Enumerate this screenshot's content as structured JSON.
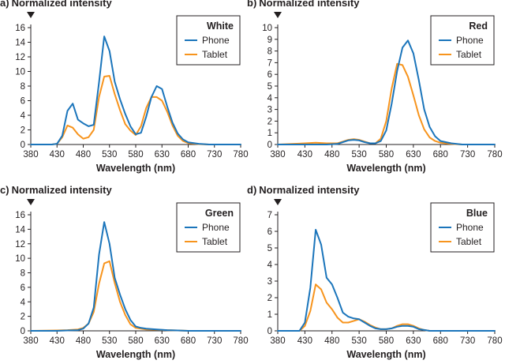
{
  "colors": {
    "phone": "#1b75bb",
    "tablet": "#f7941d",
    "axis": "#231f20"
  },
  "chart_data": [
    {
      "type": "line",
      "panel_label": "a)",
      "title": "Normalized intensity",
      "legend_title": "White",
      "xlabel": "Wavelength (nm)",
      "xlim": [
        380,
        780
      ],
      "xticks": [
        380,
        430,
        480,
        530,
        580,
        630,
        680,
        730,
        780
      ],
      "ylim": [
        0,
        16
      ],
      "yticks": [
        0,
        2,
        4,
        6,
        8,
        10,
        12,
        14,
        16
      ],
      "x": [
        380,
        400,
        420,
        430,
        440,
        450,
        460,
        470,
        480,
        490,
        500,
        510,
        520,
        530,
        540,
        550,
        560,
        570,
        580,
        590,
        600,
        610,
        620,
        630,
        640,
        650,
        660,
        670,
        680,
        700,
        720,
        740,
        760,
        780
      ],
      "series": [
        {
          "name": "Phone",
          "values": [
            0,
            0,
            0,
            0.1,
            1.2,
            4.6,
            5.6,
            3.4,
            2.9,
            2.5,
            2.7,
            8.5,
            14.8,
            12.8,
            8.6,
            6.2,
            4.2,
            2.5,
            1.4,
            1.6,
            3.8,
            6.5,
            8.0,
            7.6,
            5.2,
            3.0,
            1.5,
            0.7,
            0.3,
            0.1,
            0,
            0,
            0,
            0
          ]
        },
        {
          "name": "Tablet",
          "values": [
            0,
            0,
            0,
            0.1,
            1.0,
            2.6,
            2.3,
            1.4,
            0.8,
            1.0,
            2.0,
            6.5,
            9.3,
            9.4,
            6.9,
            4.7,
            2.8,
            1.9,
            1.3,
            2.5,
            5.0,
            6.5,
            6.5,
            6.0,
            4.5,
            2.6,
            1.2,
            0.5,
            0.2,
            0.05,
            0,
            0,
            0,
            0
          ]
        }
      ]
    },
    {
      "type": "line",
      "panel_label": "b)",
      "title": "Normalized intensity",
      "legend_title": "Red",
      "xlabel": "Wavelength (nm)",
      "xlim": [
        380,
        780
      ],
      "xticks": [
        380,
        430,
        480,
        530,
        580,
        630,
        680,
        730,
        780
      ],
      "ylim": [
        0,
        10
      ],
      "yticks": [
        0,
        1,
        2,
        3,
        4,
        5,
        6,
        7,
        8,
        9,
        10
      ],
      "x": [
        380,
        430,
        450,
        470,
        490,
        500,
        510,
        520,
        530,
        540,
        550,
        560,
        570,
        580,
        590,
        600,
        610,
        620,
        630,
        640,
        650,
        660,
        670,
        680,
        700,
        720,
        740,
        760,
        780
      ],
      "series": [
        {
          "name": "Phone",
          "values": [
            0,
            0,
            0,
            0,
            0.05,
            0.2,
            0.35,
            0.4,
            0.35,
            0.2,
            0.1,
            0.1,
            0.3,
            1.2,
            3.5,
            6.3,
            8.3,
            8.9,
            7.8,
            5.5,
            3.0,
            1.5,
            0.7,
            0.3,
            0.1,
            0,
            0,
            0,
            0
          ]
        },
        {
          "name": "Tablet",
          "values": [
            0,
            0.1,
            0.15,
            0.1,
            0.1,
            0.25,
            0.4,
            0.45,
            0.4,
            0.25,
            0.1,
            0.1,
            0.5,
            2.0,
            4.8,
            6.9,
            6.8,
            5.8,
            4.2,
            2.5,
            1.3,
            0.6,
            0.3,
            0.15,
            0.05,
            0,
            0,
            0,
            0
          ]
        }
      ]
    },
    {
      "type": "line",
      "panel_label": "c)",
      "title": "Normalized intensity",
      "legend_title": "Green",
      "xlabel": "Wavelength (nm)",
      "xlim": [
        380,
        780
      ],
      "xticks": [
        380,
        430,
        480,
        530,
        580,
        630,
        680,
        730,
        780
      ],
      "ylim": [
        0,
        16
      ],
      "yticks": [
        0,
        2,
        4,
        6,
        8,
        10,
        12,
        14,
        16
      ],
      "x": [
        380,
        430,
        450,
        470,
        480,
        490,
        500,
        510,
        520,
        530,
        540,
        550,
        560,
        570,
        580,
        590,
        600,
        620,
        640,
        660,
        680,
        700,
        720,
        740,
        760,
        780
      ],
      "series": [
        {
          "name": "Phone",
          "values": [
            0,
            0,
            0.05,
            0.1,
            0.3,
            1.0,
            3.2,
            10.5,
            15.0,
            12.0,
            7.3,
            5.0,
            3.0,
            1.5,
            0.6,
            0.4,
            0.3,
            0.2,
            0.1,
            0.05,
            0,
            0,
            0,
            0,
            0,
            0
          ]
        },
        {
          "name": "Tablet",
          "values": [
            0,
            0.05,
            0.1,
            0.2,
            0.4,
            1.0,
            2.6,
            6.5,
            9.3,
            9.6,
            6.6,
            4.0,
            2.2,
            0.9,
            0.4,
            0.3,
            0.2,
            0.15,
            0.1,
            0.05,
            0,
            0,
            0,
            0,
            0,
            0
          ]
        }
      ]
    },
    {
      "type": "line",
      "panel_label": "d)",
      "title": "Normalized intensity",
      "legend_title": "Blue",
      "xlabel": "Wavelength (nm)",
      "xlim": [
        380,
        780
      ],
      "xticks": [
        380,
        430,
        480,
        530,
        580,
        630,
        680,
        730,
        780
      ],
      "ylim": [
        0,
        7
      ],
      "yticks": [
        0,
        1,
        2,
        3,
        4,
        5,
        6,
        7
      ],
      "x": [
        380,
        420,
        430,
        440,
        450,
        460,
        470,
        480,
        490,
        500,
        510,
        520,
        530,
        540,
        550,
        560,
        570,
        580,
        590,
        600,
        610,
        620,
        630,
        640,
        650,
        660,
        680,
        700,
        720,
        740,
        760,
        780
      ],
      "series": [
        {
          "name": "Phone",
          "values": [
            0,
            0,
            0.5,
            2.6,
            6.1,
            5.2,
            3.2,
            2.8,
            2.0,
            1.1,
            0.85,
            0.75,
            0.7,
            0.5,
            0.3,
            0.15,
            0.1,
            0.1,
            0.15,
            0.25,
            0.3,
            0.3,
            0.25,
            0.1,
            0.05,
            0,
            0,
            0,
            0,
            0,
            0,
            0
          ]
        },
        {
          "name": "Tablet",
          "values": [
            0,
            0,
            0.3,
            1.2,
            2.8,
            2.5,
            1.7,
            1.3,
            0.8,
            0.5,
            0.5,
            0.6,
            0.7,
            0.55,
            0.35,
            0.2,
            0.1,
            0.1,
            0.15,
            0.3,
            0.4,
            0.4,
            0.3,
            0.15,
            0.05,
            0,
            0,
            0,
            0,
            0,
            0,
            0
          ]
        }
      ]
    }
  ]
}
